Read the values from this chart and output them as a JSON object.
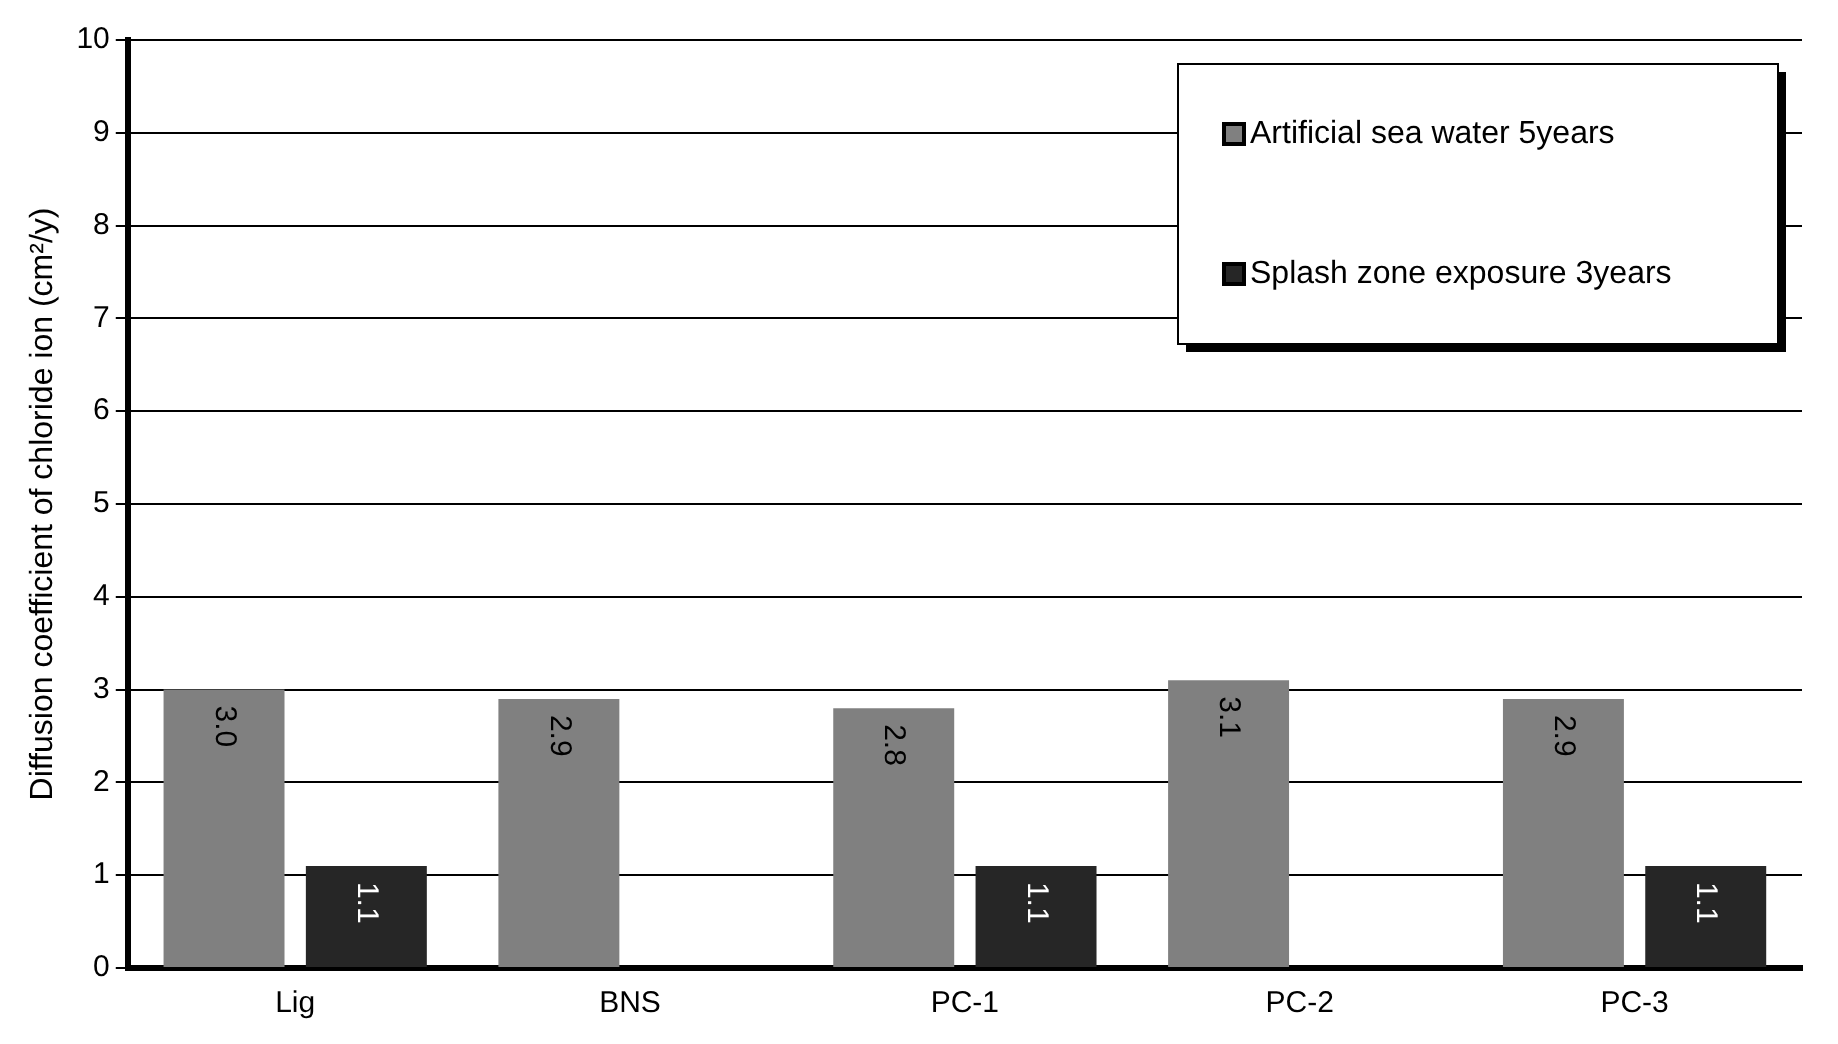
{
  "chart_data": {
    "type": "bar",
    "ylabel": "Diffusion coefficient of chloride ion (cm²/y)",
    "categories": [
      "Lig",
      "BNS",
      "PC-1",
      "PC-2",
      "PC-3"
    ],
    "series": [
      {
        "name": "Artificial sea water 5years",
        "color": "#808080",
        "values": [
          3.0,
          2.9,
          2.8,
          3.1,
          2.9
        ],
        "value_labels": [
          "3.0",
          "2.9",
          "2.8",
          "3.1",
          "2.9"
        ]
      },
      {
        "name": "Splash zone exposure 3years",
        "color": "#262626",
        "values": [
          1.1,
          null,
          1.1,
          null,
          1.1
        ],
        "value_labels": [
          "1.1",
          null,
          "1.1",
          null,
          "1.1"
        ]
      }
    ],
    "ylim": [
      0,
      10
    ],
    "yticks": [
      0,
      1,
      2,
      3,
      4,
      5,
      6,
      7,
      8,
      9,
      10
    ],
    "grid": "y",
    "legend": "top right"
  }
}
